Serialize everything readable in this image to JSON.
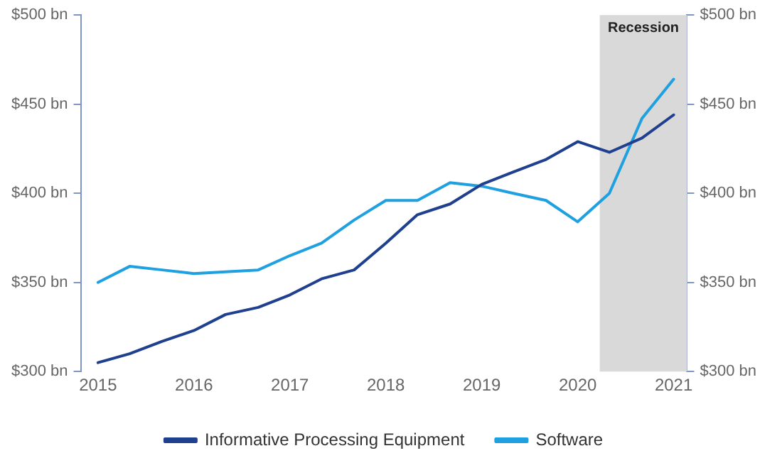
{
  "chart_data": {
    "type": "line",
    "x": [
      2015,
      2015.33,
      2015.67,
      2016,
      2016.33,
      2016.67,
      2017,
      2017.33,
      2017.67,
      2018,
      2018.33,
      2018.67,
      2019,
      2019.33,
      2019.67,
      2020,
      2020.33,
      2020.67,
      2021
    ],
    "series": [
      {
        "name": "Informative Processing Equipment",
        "color": "#1f3f8f",
        "values": [
          305,
          310,
          317,
          323,
          332,
          336,
          343,
          352,
          357,
          372,
          388,
          394,
          405,
          412,
          419,
          429,
          423,
          431,
          444
        ]
      },
      {
        "name": "Software",
        "color": "#1fa0e0",
        "values": [
          350,
          359,
          357,
          355,
          356,
          357,
          365,
          372,
          385,
          396,
          396,
          406,
          404,
          400,
          396,
          384,
          400,
          442,
          464
        ]
      }
    ],
    "xlim": [
      2014.82,
      2021.14
    ],
    "xticks": [
      2015,
      2016,
      2017,
      2018,
      2019,
      2020,
      2021
    ],
    "ylim": [
      300,
      500
    ],
    "yticks": [
      {
        "value": 300,
        "label": "$300 bn"
      },
      {
        "value": 350,
        "label": "$350 bn"
      },
      {
        "value": 400,
        "label": "$400 bn"
      },
      {
        "value": 450,
        "label": "$450 bn"
      },
      {
        "value": 500,
        "label": "$500 bn"
      }
    ],
    "y2lim": [
      300,
      500
    ],
    "y2ticks": [
      {
        "value": 300,
        "label": "$300 bn"
      },
      {
        "value": 350,
        "label": "$350 bn"
      },
      {
        "value": 400,
        "label": "$400 bn"
      },
      {
        "value": 450,
        "label": "$450 bn"
      },
      {
        "value": 500,
        "label": "$500 bn"
      }
    ],
    "bands": [
      {
        "axis": "x",
        "from": 2020.23,
        "to": 2021.14,
        "label": "Recession",
        "color": "#d9d9d9"
      }
    ],
    "grid": false,
    "legend": "bottom",
    "marker": "none",
    "line_style": "solid"
  }
}
